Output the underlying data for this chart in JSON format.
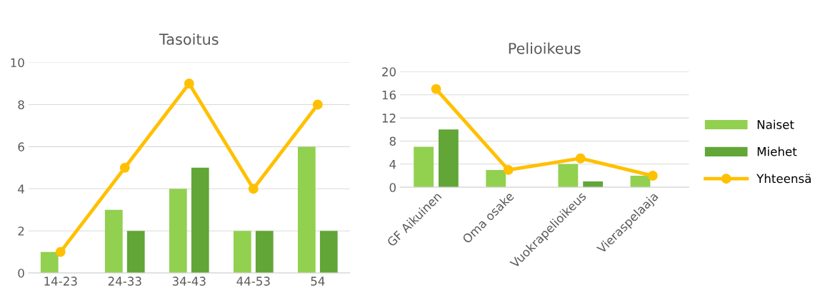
{
  "chart_data": [
    {
      "type": "bar",
      "title": "Tasoitus",
      "categories": [
        "14-23",
        "24-33",
        "34-43",
        "44-53",
        "54"
      ],
      "ylim": [
        0,
        10
      ],
      "yticks": [
        0,
        2,
        4,
        6,
        8,
        10
      ],
      "grid": "y",
      "legend": false,
      "series": [
        {
          "color": "#92d050",
          "values": [
            1,
            3,
            4,
            2,
            6
          ]
        },
        {
          "color": "#61a637",
          "values": [
            0,
            2,
            5,
            2,
            2
          ]
        },
        {
          "type": "line",
          "color": "#ffc000",
          "marker": "circle",
          "values": [
            1,
            5,
            9,
            4,
            8
          ]
        }
      ]
    },
    {
      "type": "bar",
      "title": "Pelioikeus",
      "categories": [
        "GF Aikuinen",
        "Oma osake",
        "Vuokrapelioikeus",
        "Vieraspelaaja"
      ],
      "ylim": [
        0,
        20
      ],
      "yticks": [
        0,
        4,
        8,
        12,
        16,
        20
      ],
      "grid": "y",
      "legend": "right",
      "series": [
        {
          "name": "Naiset",
          "color": "#92d050",
          "values": [
            7,
            3,
            4,
            2
          ]
        },
        {
          "name": "Miehet",
          "color": "#61a637",
          "values": [
            10,
            0,
            1,
            0
          ]
        },
        {
          "name": "Yhteensä",
          "type": "line",
          "color": "#ffc000",
          "marker": "circle",
          "values": [
            17,
            3,
            5,
            2
          ]
        }
      ]
    }
  ]
}
